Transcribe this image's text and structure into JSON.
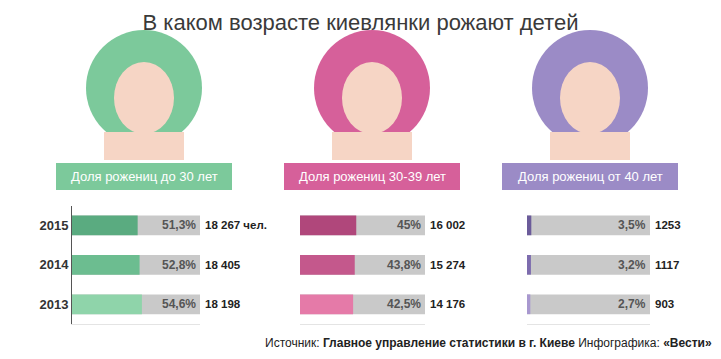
{
  "title": "В каком возрасте киевлянки рожают детей",
  "source": {
    "label": "Источник:",
    "text": "Главное управление статистики в г. Киеве",
    "credit_label": "Инфографика:",
    "credit": "«Вести»"
  },
  "chart_data": [
    {
      "type": "bar",
      "orientation": "horizontal",
      "title": "Доля рожениц до 30 лет",
      "categories": [
        "2015",
        "2014",
        "2013"
      ],
      "values": [
        51.3,
        52.8,
        54.6
      ],
      "value_labels": [
        "51,3%",
        "52,8%",
        "54,6%"
      ],
      "births": [
        18267,
        18405,
        18198
      ],
      "births_labels": [
        "18 267 чел.",
        "18 405",
        "18 198"
      ],
      "color": "#7cc99b",
      "colors": [
        "#5aab80",
        "#6cbd90",
        "#8fd4aa"
      ],
      "xlim": [
        0,
        100
      ],
      "data_labels": true,
      "tick_labels": "y",
      "grid": false
    },
    {
      "type": "bar",
      "orientation": "horizontal",
      "title": "Доля рожениц 30-39 лет",
      "categories": [
        "2015",
        "2014",
        "2013"
      ],
      "values": [
        45,
        43.8,
        42.5
      ],
      "value_labels": [
        "45%",
        "43,8%",
        "42,5%"
      ],
      "births": [
        16002,
        15274,
        14176
      ],
      "births_labels": [
        "16 002",
        "15 274",
        "14 176"
      ],
      "color": "#d6609a",
      "colors": [
        "#b0477b",
        "#c4588c",
        "#e57aa8"
      ],
      "xlim": [
        0,
        100
      ],
      "data_labels": true,
      "tick_labels": false,
      "grid": false
    },
    {
      "type": "bar",
      "orientation": "horizontal",
      "title": "Доля рожениц от 40 лет",
      "categories": [
        "2015",
        "2014",
        "2013"
      ],
      "values": [
        3.5,
        3.2,
        2.7
      ],
      "value_labels": [
        "3,5%",
        "3,2%",
        "2,7%"
      ],
      "births": [
        1253,
        1117,
        903
      ],
      "births_labels": [
        "1253",
        "1117",
        "903"
      ],
      "color": "#9b8bc6",
      "colors": [
        "#6b5b9a",
        "#7d6cae",
        "#a898cf"
      ],
      "xlim": [
        0,
        100
      ],
      "data_labels": true,
      "tick_labels": false,
      "grid": false
    }
  ]
}
